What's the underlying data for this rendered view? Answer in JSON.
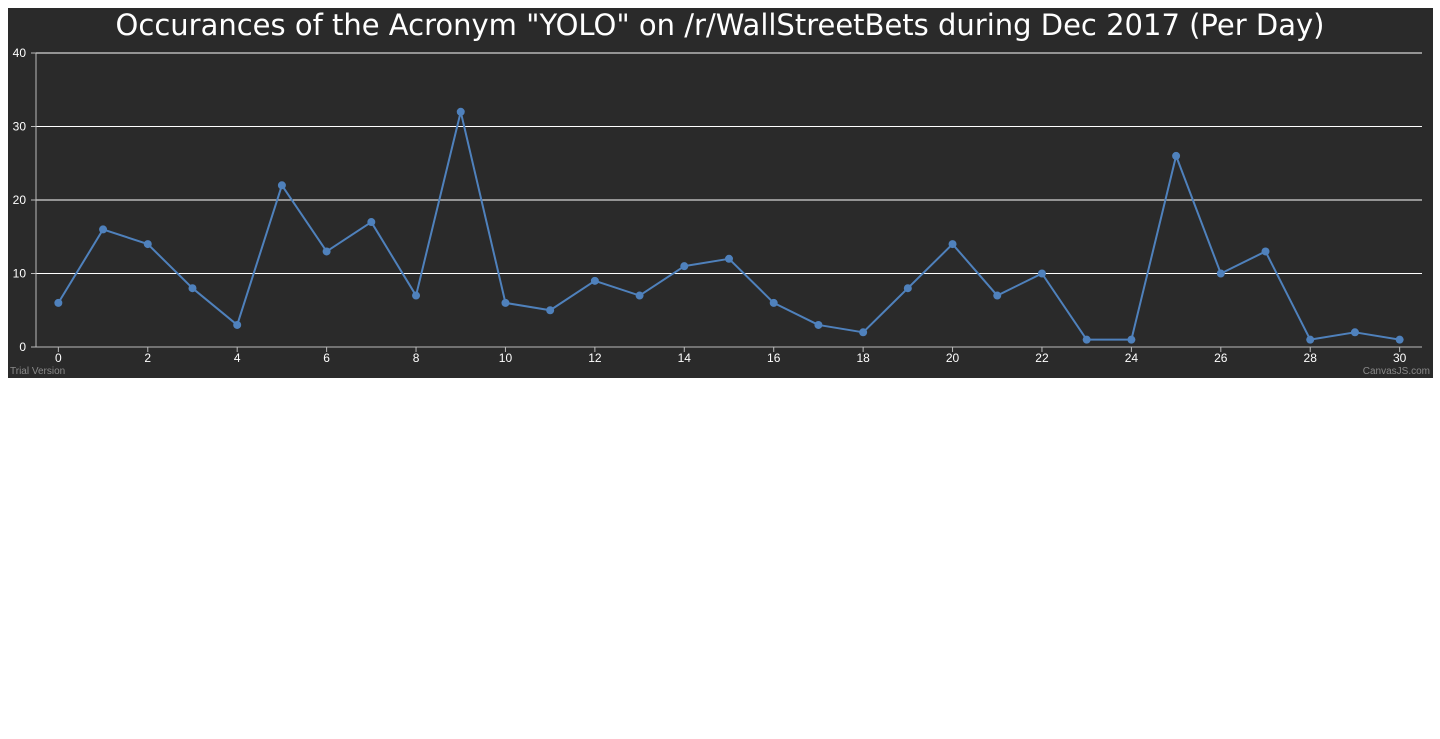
{
  "chart_data": {
    "type": "line",
    "title": "Occurances of the Acronym \"YOLO\" on /r/WallStreetBets during Dec 2017 (Per Day)",
    "xlabel": "",
    "ylabel": "",
    "x": [
      0,
      1,
      2,
      3,
      4,
      5,
      6,
      7,
      8,
      9,
      10,
      11,
      12,
      13,
      14,
      15,
      16,
      17,
      18,
      19,
      20,
      21,
      22,
      23,
      24,
      25,
      26,
      27,
      28,
      29,
      30
    ],
    "values": [
      6,
      16,
      14,
      8,
      3,
      22,
      13,
      17,
      7,
      32,
      6,
      5,
      9,
      7,
      11,
      12,
      6,
      3,
      2,
      8,
      14,
      7,
      10,
      1,
      1,
      26,
      10,
      13,
      1,
      2,
      1
    ],
    "xlim": [
      -0.5,
      30.5
    ],
    "ylim": [
      0,
      40
    ],
    "x_ticks": [
      "0",
      "2",
      "4",
      "6",
      "8",
      "10",
      "12",
      "14",
      "16",
      "18",
      "20",
      "22",
      "24",
      "26",
      "28",
      "30"
    ],
    "y_ticks": [
      "0",
      "10",
      "20",
      "30",
      "40"
    ],
    "grid": true,
    "legend": "none",
    "line_color": "#4f81bc",
    "background_color": "#2a2a2a",
    "grid_color": "#ffffff"
  },
  "credits": {
    "left": "Trial Version",
    "right": "CanvasJS.com"
  }
}
